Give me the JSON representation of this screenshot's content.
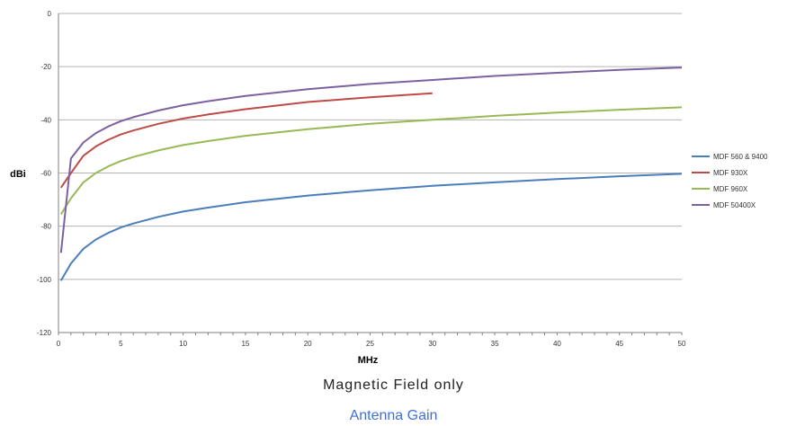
{
  "chart_data": {
    "type": "line",
    "xlabel": "MHz",
    "ylabel": "dBi",
    "xlim": [
      0,
      50
    ],
    "ylim": [
      -120,
      0
    ],
    "xticks": [
      0,
      5,
      10,
      15,
      20,
      25,
      30,
      35,
      40,
      45,
      50
    ],
    "yticks": [
      0,
      -20,
      -40,
      -60,
      -80,
      -100,
      -120
    ],
    "grid": "horizontal",
    "legend_position": "right",
    "series": [
      {
        "name": "MDF 560 & 9400",
        "color": "#4a7ebb",
        "x": [
          0.2,
          1,
          2,
          3,
          4,
          5,
          6,
          8,
          10,
          12,
          15,
          20,
          25,
          30,
          35,
          40,
          45,
          50
        ],
        "y": [
          -100.5,
          -94,
          -88.5,
          -85,
          -82.5,
          -80.5,
          -79,
          -76.5,
          -74.5,
          -73,
          -71,
          -68.5,
          -66.5,
          -64.8,
          -63.5,
          -62.3,
          -61.2,
          -60.3
        ]
      },
      {
        "name": "MDF 930X",
        "color": "#be4b48",
        "x": [
          0.2,
          1,
          2,
          3,
          4,
          5,
          6,
          8,
          10,
          12,
          15,
          20,
          25,
          30
        ],
        "y": [
          -65.5,
          -60,
          -53.5,
          -50,
          -47.5,
          -45.5,
          -44,
          -41.5,
          -39.5,
          -38,
          -36,
          -33.3,
          -31.5,
          -30
        ]
      },
      {
        "name": "MDF 960X",
        "color": "#98b954",
        "x": [
          0.2,
          1,
          2,
          3,
          4,
          5,
          6,
          8,
          10,
          12,
          15,
          20,
          25,
          30,
          35,
          40,
          45,
          50
        ],
        "y": [
          -75.5,
          -69.5,
          -63.5,
          -60,
          -57.5,
          -55.5,
          -54,
          -51.5,
          -49.5,
          -48,
          -46,
          -43.5,
          -41.5,
          -40,
          -38.5,
          -37.3,
          -36.2,
          -35.3
        ]
      },
      {
        "name": "MDF 50400X",
        "color": "#7d60a0",
        "x": [
          0.2,
          1,
          2,
          3,
          4,
          5,
          6,
          8,
          10,
          12,
          15,
          20,
          25,
          30,
          35,
          40,
          45,
          50
        ],
        "y": [
          -90,
          -54.5,
          -48.5,
          -45,
          -42.5,
          -40.5,
          -39,
          -36.5,
          -34.5,
          -33,
          -31,
          -28.5,
          -26.5,
          -25,
          -23.5,
          -22.3,
          -21.2,
          -20.3
        ]
      }
    ]
  },
  "caption": {
    "main": "Magnetic Field only",
    "sub": "Antenna Gain"
  }
}
